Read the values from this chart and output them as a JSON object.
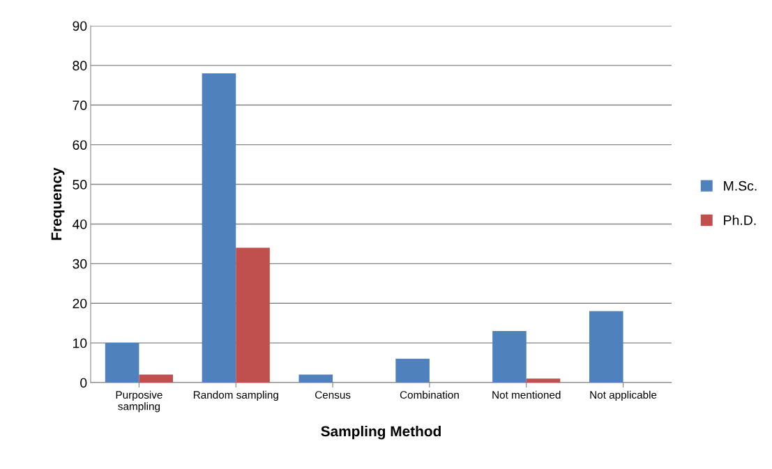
{
  "chart_data": {
    "type": "bar",
    "xlabel": "Sampling Method",
    "ylabel": "Frequency",
    "categories": [
      "Purposive\nsampling",
      "Random sampling",
      "Census",
      "Combination",
      "Not mentioned",
      "Not applicable"
    ],
    "series": [
      {
        "name": "M.Sc.",
        "color": "#4f81bd",
        "values": [
          10,
          78,
          2,
          6,
          13,
          18
        ]
      },
      {
        "name": "Ph.D.",
        "color": "#c0504d",
        "values": [
          2,
          34,
          0,
          0,
          1,
          0
        ]
      }
    ],
    "ylim": [
      0,
      90
    ],
    "yticks": [
      0,
      10,
      20,
      30,
      40,
      50,
      60,
      70,
      80,
      90
    ],
    "grid": "y",
    "legend": "right"
  }
}
